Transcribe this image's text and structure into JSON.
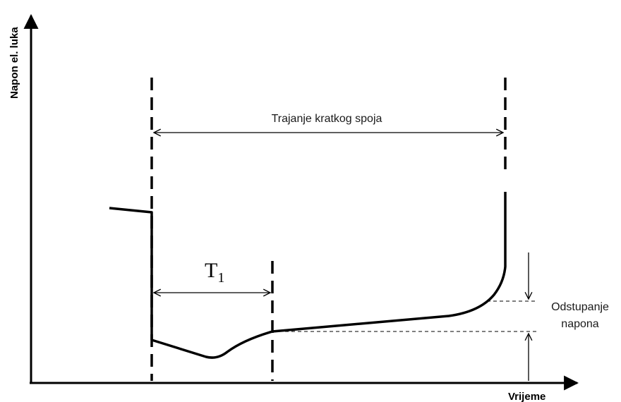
{
  "diagram": {
    "y_axis_label": "Napon el. luka",
    "x_axis_label": "Vrijeme",
    "duration_label": "Trajanje kratkog spoja",
    "t1_label": "T",
    "t1_subscript": "1",
    "deviation_label_line1": "Odstupanje",
    "deviation_label_line2": "napona"
  }
}
